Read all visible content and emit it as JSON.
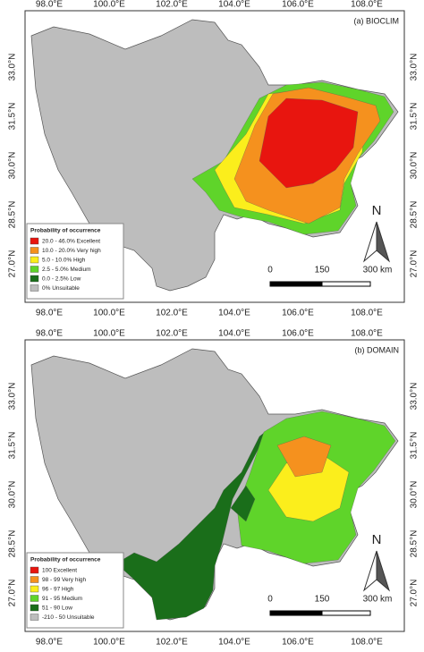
{
  "panels": [
    {
      "label": "(a) BIOCLIM",
      "top_ticks": [
        "98.0°E",
        "100.0°E",
        "102.0°E",
        "104.0°E",
        "106.0°E",
        "108.0°E"
      ],
      "bottom_ticks": [
        "98.0°E",
        "100.0°E",
        "102.0°E",
        "104.0°E",
        "106.0°E",
        "108.0°E"
      ],
      "left_ticks": [
        "33.0°N",
        "31.5°N",
        "30.0°N",
        "28.5°N",
        "27.0°N"
      ],
      "right_ticks": [
        "33.0°N",
        "31.5°N",
        "30.0°N",
        "28.5°N",
        "27.0°N"
      ],
      "legend": {
        "title": "Probability of occurrence",
        "items": [
          {
            "label": "20.0 - 46.0% Excellent",
            "color": "#e8150f"
          },
          {
            "label": "10.0 - 20.0% Very high",
            "color": "#f5911e"
          },
          {
            "label": "5.0 - 10.0% High",
            "color": "#fbee1c"
          },
          {
            "label": "2.5 - 5.0% Medium",
            "color": "#5fd42a"
          },
          {
            "label": "0.0 - 2.5% Low",
            "color": "#1a6e1a"
          },
          {
            "label": "0% Unsuitable",
            "color": "#bdbdbd"
          }
        ]
      },
      "north": "N",
      "scale": [
        "0",
        "150",
        "300 km"
      ]
    },
    {
      "label": "(b) DOMAIN",
      "top_ticks": [
        "98.0°E",
        "100.0°E",
        "102.0°E",
        "104.0°E",
        "106.0°E",
        "108.0°E"
      ],
      "bottom_ticks": [
        "98.0°E",
        "100.0°E",
        "102.0°E",
        "104.0°E",
        "106.0°E",
        "108.0°E"
      ],
      "left_ticks": [
        "33.0°N",
        "31.5°N",
        "30.0°N",
        "28.5°N",
        "27.0°N"
      ],
      "right_ticks": [
        "33.0°N",
        "31.5°N",
        "30.0°N",
        "28.5°N",
        "27.0°N"
      ],
      "legend": {
        "title": "Probability of occurrence",
        "items": [
          {
            "label": "100 Excellent",
            "color": "#e8150f"
          },
          {
            "label": "98 - 99 Very high",
            "color": "#f5911e"
          },
          {
            "label": "96 - 97 High",
            "color": "#fbee1c"
          },
          {
            "label": "91 - 95 Medium",
            "color": "#5fd42a"
          },
          {
            "label": "51 - 90 Low",
            "color": "#1a6e1a"
          },
          {
            "label": "-210 - 50 Unsuitable",
            "color": "#bdbdbd"
          }
        ]
      },
      "north": "N",
      "scale": [
        "0",
        "150",
        "300 km"
      ]
    }
  ]
}
